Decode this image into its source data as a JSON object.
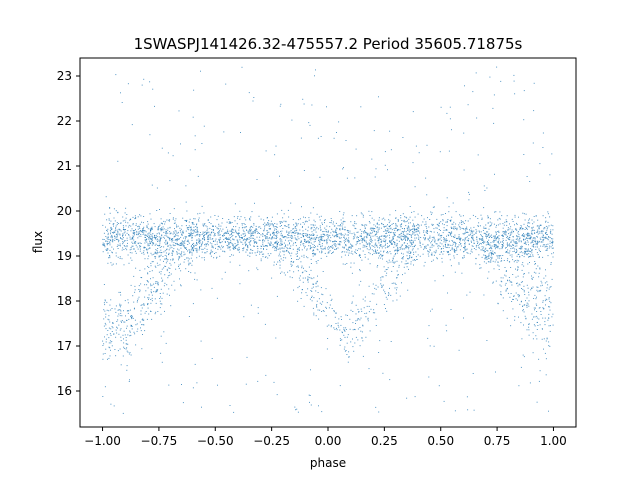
{
  "chart_data": {
    "type": "scatter",
    "title": "1SWASPJ141426.32-475557.2 Period 35605.71875s",
    "xlabel": "phase",
    "ylabel": "flux",
    "xlim": [
      -1.1,
      1.1
    ],
    "ylim": [
      15.2,
      23.4
    ],
    "x_ticks": [
      -1.0,
      -0.75,
      -0.5,
      -0.25,
      0.0,
      0.25,
      0.5,
      0.75,
      1.0
    ],
    "x_tick_labels": [
      "−1.00",
      "−0.75",
      "−0.50",
      "−0.25",
      "0.00",
      "0.25",
      "0.50",
      "0.75",
      "1.00"
    ],
    "y_ticks": [
      16,
      17,
      18,
      19,
      20,
      21,
      22,
      23
    ],
    "y_tick_labels": [
      "16",
      "17",
      "18",
      "19",
      "20",
      "21",
      "22",
      "23"
    ],
    "grid": false,
    "legend": "none",
    "marker_color": "#1f77b4",
    "series": [
      {
        "values_description_free": true,
        "phase_range": [
          -1.0,
          1.0
        ],
        "baseline_flux": 19.4,
        "baseline_band": [
          18.9,
          20.1
        ],
        "eclipse_dips": [
          {
            "center_phase": -0.9,
            "min_flux": 17.2
          },
          {
            "center_phase": 0.08,
            "min_flux": 17.2
          },
          {
            "center_phase": 1.0,
            "min_flux": 17.0
          }
        ],
        "outlier_range": [
          15.5,
          23.2
        ]
      }
    ]
  }
}
